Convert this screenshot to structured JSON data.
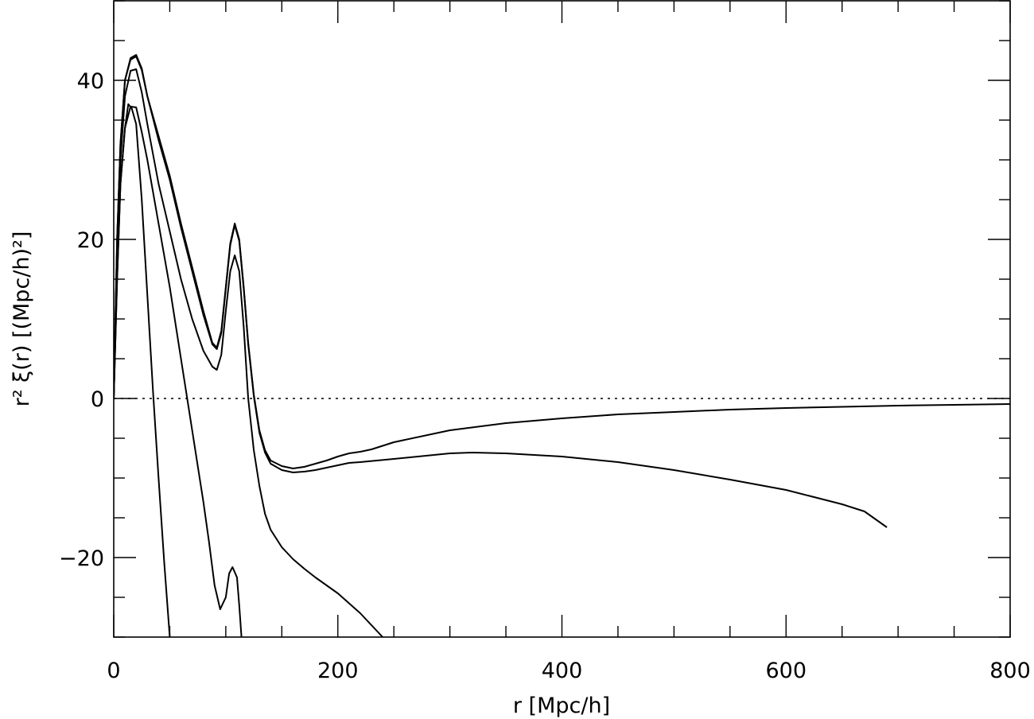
{
  "chart_data": {
    "type": "line",
    "xlabel": "r [Mpc/h]",
    "ylabel": "r² ξ(r) [(Mpc/h)²]",
    "xlim": [
      0,
      800
    ],
    "ylim": [
      -30,
      50
    ],
    "x_ticks": [
      {
        "value": 0,
        "label": "0"
      },
      {
        "value": 200,
        "label": "200"
      },
      {
        "value": 400,
        "label": "400"
      },
      {
        "value": 600,
        "label": "600"
      },
      {
        "value": 800,
        "label": "800"
      }
    ],
    "y_ticks": [
      {
        "value": -20,
        "label": "−20"
      },
      {
        "value": 0,
        "label": "0"
      },
      {
        "value": 20,
        "label": "20"
      },
      {
        "value": 40,
        "label": "40"
      }
    ],
    "x_minor_step": 50,
    "y_minor_step": 5,
    "reference_line": {
      "y": 0,
      "style": "dotted"
    },
    "series": [
      {
        "x": [
          0,
          3,
          6,
          10,
          15,
          20,
          25,
          30,
          40,
          50,
          60,
          70,
          80,
          88,
          92,
          96,
          100,
          104,
          108,
          112,
          116,
          120,
          125,
          130,
          135,
          140,
          150,
          160,
          170,
          180,
          190,
          200,
          210,
          220,
          230,
          250,
          300,
          350,
          400,
          450,
          500,
          550,
          600,
          650,
          700,
          750,
          800
        ],
        "y": [
          0,
          20,
          32,
          40,
          42.8,
          43.2,
          41.5,
          38,
          33,
          28,
          22,
          16.5,
          11,
          7,
          6.4,
          8.5,
          14,
          19.5,
          22,
          20,
          14,
          7,
          0.5,
          -4,
          -6.5,
          -7.8,
          -8.5,
          -8.8,
          -8.6,
          -8.2,
          -7.8,
          -7.3,
          -6.9,
          -6.7,
          -6.4,
          -5.5,
          -4,
          -3.1,
          -2.5,
          -2.0,
          -1.7,
          -1.4,
          -1.2,
          -1.05,
          -0.9,
          -0.8,
          -0.7
        ]
      },
      {
        "x": [
          0,
          3,
          6,
          10,
          15,
          20,
          25,
          30,
          40,
          50,
          60,
          70,
          80,
          88,
          92,
          96,
          100,
          104,
          108,
          112,
          116,
          120,
          125,
          130,
          135,
          140,
          150,
          160,
          170,
          180,
          190,
          200,
          210,
          220,
          250,
          300,
          320,
          350,
          400,
          450,
          500,
          550,
          600,
          650,
          670,
          680,
          690
        ],
        "y": [
          0,
          20,
          32,
          40,
          42.6,
          43,
          41.3,
          38,
          32.5,
          27.5,
          21.5,
          16,
          10.5,
          6.8,
          6.2,
          8.2,
          13.8,
          19.3,
          21.8,
          19.8,
          13.8,
          6.8,
          0.3,
          -4.3,
          -6.8,
          -8.2,
          -9.0,
          -9.3,
          -9.2,
          -9.0,
          -8.7,
          -8.4,
          -8.1,
          -8.0,
          -7.6,
          -6.9,
          -6.8,
          -6.9,
          -7.3,
          -8.0,
          -9.0,
          -10.2,
          -11.5,
          -13.3,
          -14.2,
          -15.2,
          -16.2
        ]
      },
      {
        "x": [
          0,
          3,
          6,
          10,
          15,
          20,
          25,
          30,
          40,
          50,
          60,
          70,
          80,
          88,
          92,
          96,
          100,
          104,
          108,
          112,
          116,
          120,
          125,
          130,
          135,
          140,
          150,
          160,
          170,
          180,
          200,
          220,
          240
        ],
        "y": [
          0,
          18,
          30,
          38,
          41.2,
          41.4,
          38.5,
          34.5,
          27,
          21,
          15,
          10,
          6,
          4,
          3.6,
          5.5,
          11,
          16,
          18,
          16,
          9,
          0,
          -6.5,
          -11,
          -14.5,
          -16.5,
          -18.7,
          -20.2,
          -21.4,
          -22.5,
          -24.5,
          -27,
          -30
        ]
      },
      {
        "x": [
          0,
          3,
          6,
          10,
          15,
          20,
          25,
          30,
          40,
          50,
          60,
          70,
          80,
          85,
          90,
          95,
          100,
          103,
          106,
          110,
          112,
          114
        ],
        "y": [
          0,
          15,
          27,
          34,
          36.7,
          36.6,
          33.5,
          30,
          22,
          14,
          5,
          -4,
          -13,
          -18,
          -23.5,
          -26.5,
          -25,
          -22,
          -21.2,
          -22.5,
          -26,
          -30
        ]
      },
      {
        "x": [
          0,
          3,
          6,
          10,
          13,
          16,
          20,
          25,
          30,
          35,
          40,
          45,
          50
        ],
        "y": [
          0,
          15,
          27,
          34,
          37,
          36.5,
          34.5,
          25,
          13,
          1,
          -10,
          -20.5,
          -30
        ]
      }
    ]
  }
}
